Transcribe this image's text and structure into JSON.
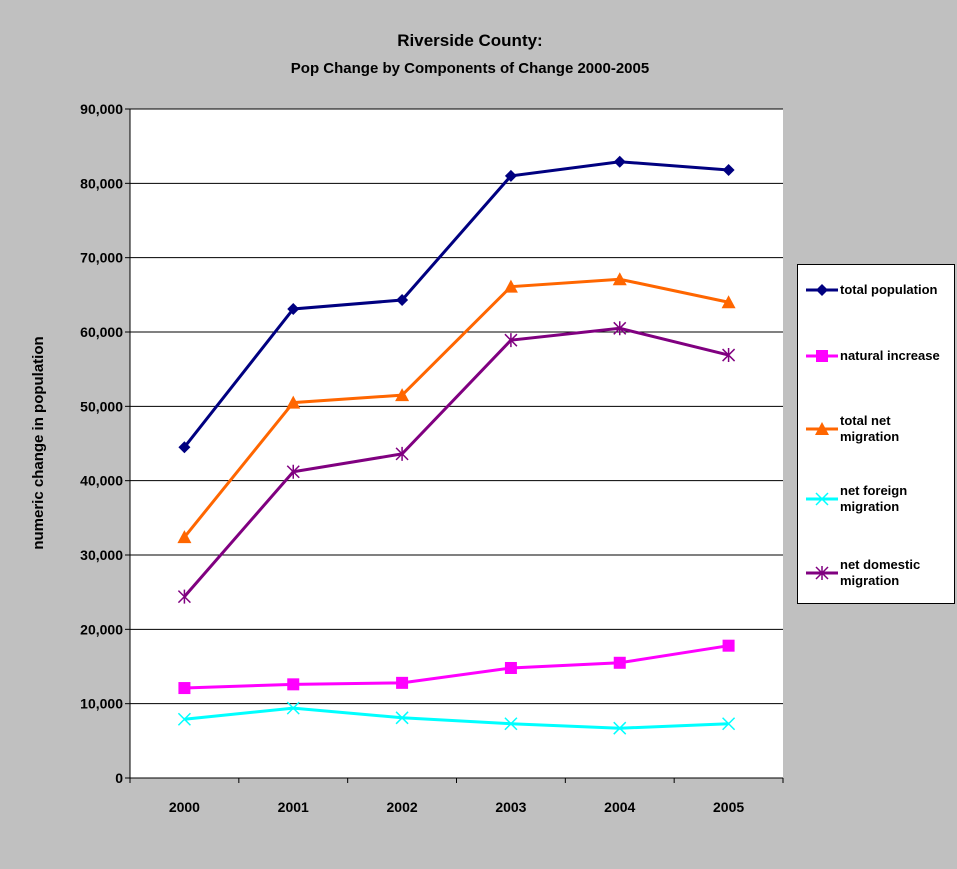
{
  "chart_data": {
    "type": "line",
    "title": "Riverside County:",
    "subtitle": "Pop Change by Components of Change 2000-2005",
    "y_label": "numeric change in population",
    "categories": [
      "2000",
      "2001",
      "2002",
      "2003",
      "2004",
      "2005"
    ],
    "ylim": [
      0,
      90000
    ],
    "yticks": [
      0,
      {
        "value": 10000,
        "label": "10,000"
      },
      {
        "value": 20000,
        "label": "20,000"
      },
      {
        "value": 30000,
        "label": "30,000"
      },
      {
        "value": 40000,
        "label": "40,000"
      },
      {
        "value": 50000,
        "label": "50,000"
      },
      {
        "value": 60000,
        "label": "60,000"
      },
      {
        "value": 70000,
        "label": "70,000"
      },
      {
        "value": 80000,
        "label": "80,000"
      },
      {
        "value": 90000,
        "label": "90,000"
      }
    ],
    "grid": true,
    "legend": "right",
    "series": [
      {
        "name": "total population",
        "color": "#000080",
        "marker": "diamond",
        "values": [
          44500,
          63100,
          64300,
          81000,
          82900,
          81800
        ]
      },
      {
        "name": "natural increase",
        "color": "#ff00ff",
        "marker": "square",
        "values": [
          12100,
          12600,
          12800,
          14800,
          15500,
          17800
        ]
      },
      {
        "name": "total net migration",
        "color": "#ff6600",
        "marker": "triangle",
        "values": [
          32400,
          50500,
          51500,
          66100,
          67100,
          64000
        ]
      },
      {
        "name": "net foreign migration",
        "color": "#00ffff",
        "marker": "x",
        "values": [
          7900,
          9400,
          8100,
          7300,
          6700,
          7300
        ]
      },
      {
        "name": "net domestic migration",
        "color": "#800080",
        "marker": "star",
        "values": [
          24400,
          41200,
          43600,
          58900,
          60500,
          56900
        ]
      }
    ]
  }
}
